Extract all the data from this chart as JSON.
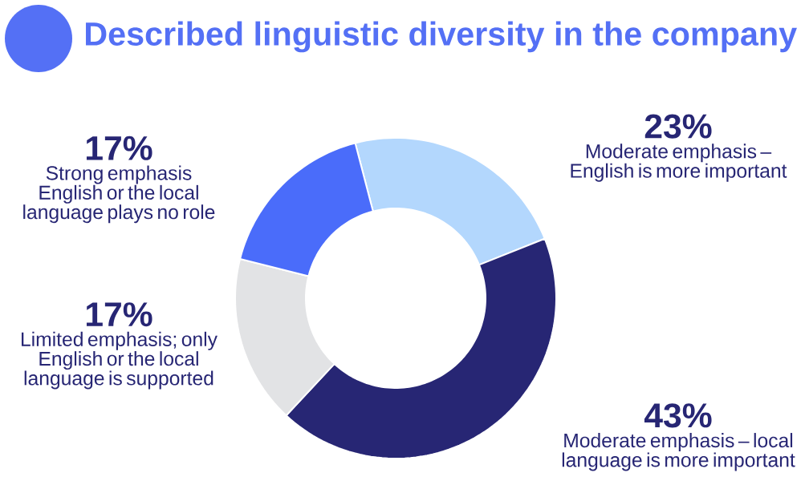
{
  "chart_data": {
    "type": "donut",
    "title": "Described linguistic diversity in the company",
    "categories": [
      "Moderate emphasis – English is more important",
      "Moderate emphasis – local language is more important",
      "Limited emphasis; only English or the local language is supported",
      "Strong emphasis English or the local language plays no role"
    ],
    "values": [
      23,
      43,
      17,
      17
    ],
    "value_labels": [
      "23%",
      "43%",
      "17%",
      "17%"
    ],
    "colors": [
      "#b3d7fd",
      "#272674",
      "#e2e3e5",
      "#4a6cfa"
    ],
    "legend": false
  }
}
